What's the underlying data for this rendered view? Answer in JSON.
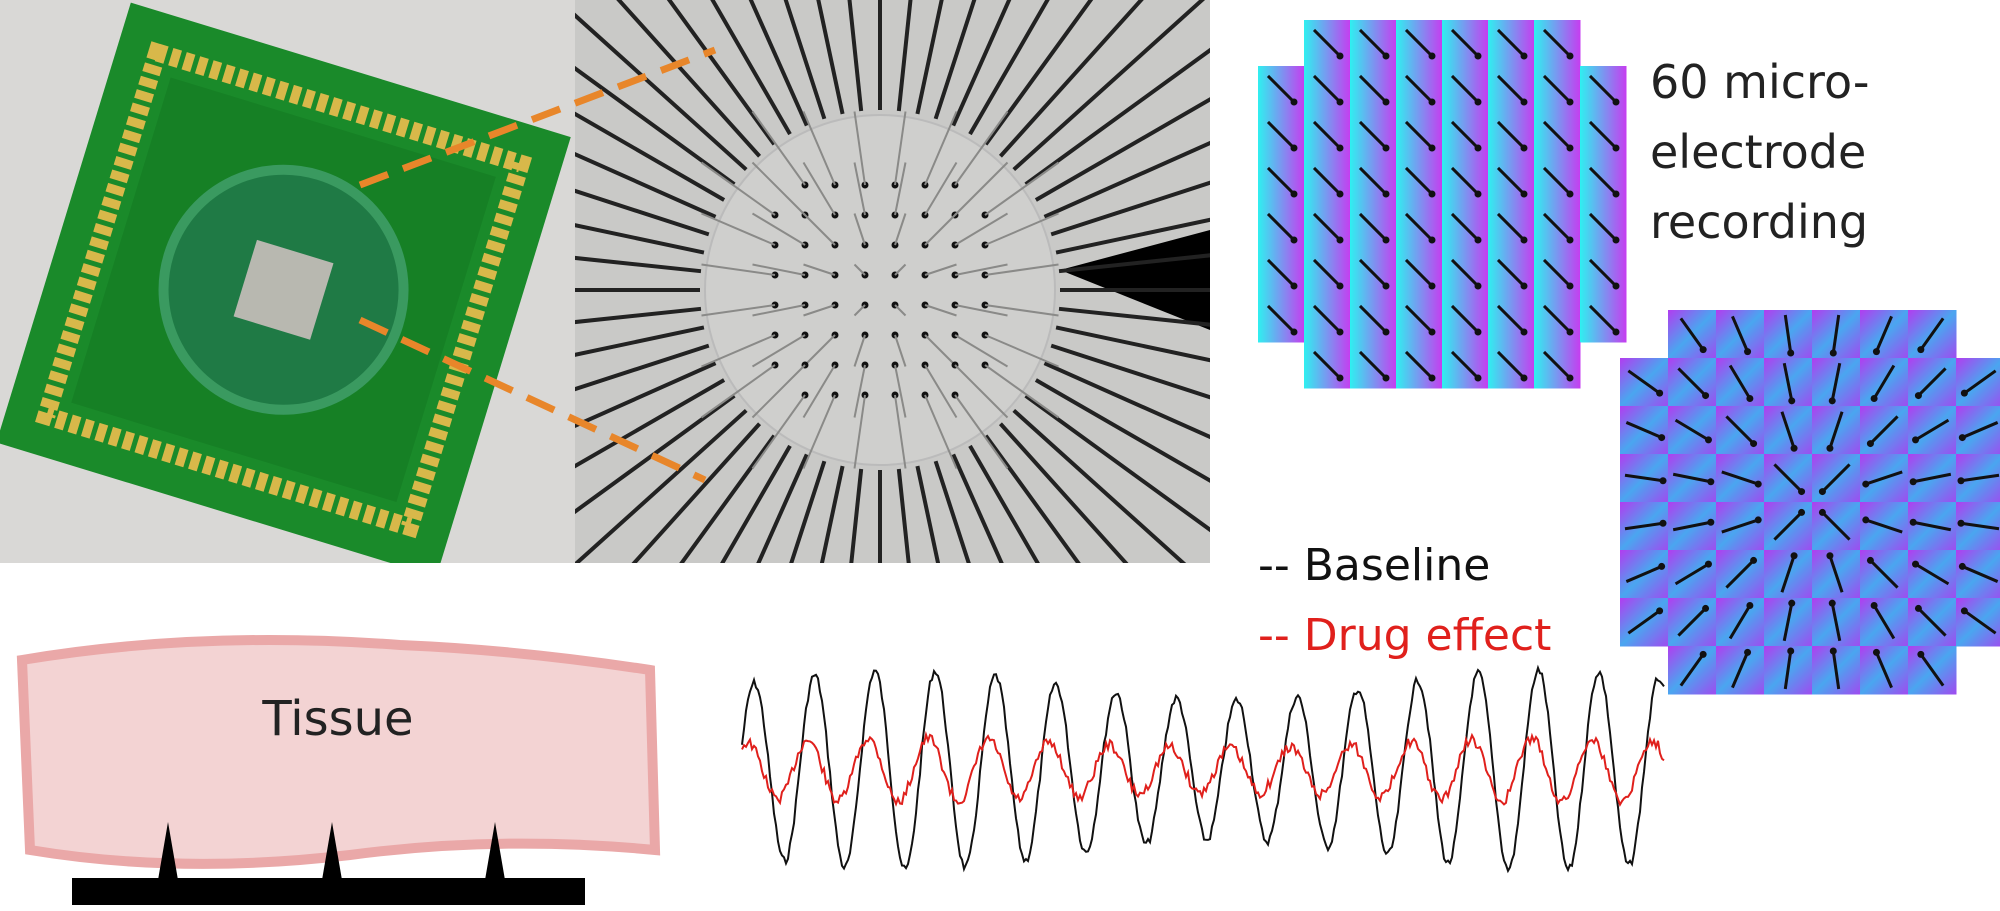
{
  "labels": {
    "recording": [
      "60 micro-",
      "electrode",
      "recording"
    ],
    "legend": {
      "baseline": "-- Baseline",
      "drug": "-- Drug effect"
    },
    "tissue": "Tissue"
  }
}
